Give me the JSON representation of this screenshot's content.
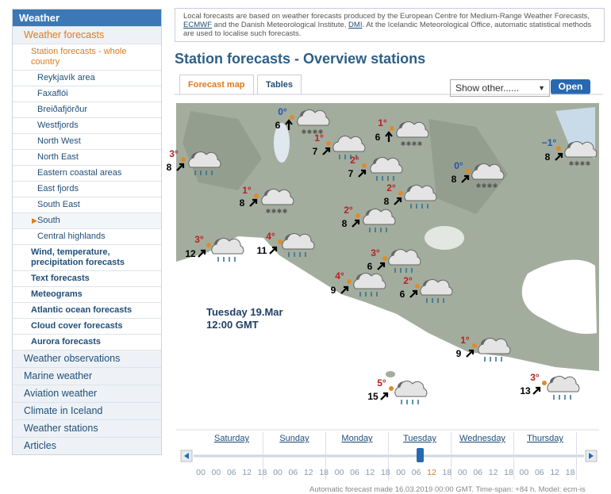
{
  "sidebar": {
    "title": "Weather",
    "section": "Weather forecasts",
    "subsection": "Station forecasts - whole country",
    "regions": [
      "Reykjavík area",
      "Faxaflói",
      "Breiðafjörður",
      "Westfjords",
      "North West",
      "North East",
      "Eastern coastal areas",
      "East fjords",
      "South East",
      "South",
      "Central highlands"
    ],
    "forecast_links": [
      "Wind, temperature, precipitation forecasts",
      "Text forecasts",
      "Meteograms",
      "Atlantic ocean forecasts",
      "Cloud cover forecasts",
      "Aurora forecasts"
    ],
    "menu": [
      "Weather observations",
      "Marine weather",
      "Aviation weather",
      "Climate in Iceland",
      "Weather stations",
      "Articles"
    ]
  },
  "notice": {
    "text1": "Local forecasts are based on weather forecasts produced by the European Centre for Medium-Range Weather Forecasts, ",
    "link1": "ECMWF",
    "text2": " and the Danish Meteorological Institute, ",
    "link2": "DMI",
    "text3": ". At the Icelandic Meteorological Office, automatic statistical methods are used to localise such forecasts."
  },
  "heading": "Station forecasts - Overview stations",
  "tabs": [
    "Forecast map",
    "Tables"
  ],
  "select": "Show other......",
  "button": "Open",
  "map": {
    "date": "Tuesday 19.Mar",
    "time": "12:00 GMT",
    "stations": [
      {
        "temp": "0°",
        "wind": "6"
      },
      {
        "temp": "1°",
        "wind": "7"
      },
      {
        "temp": "1°",
        "wind": "6"
      },
      {
        "temp": "3°",
        "wind": "8"
      },
      {
        "temp": "2°",
        "wind": "7"
      },
      {
        "temp": "−1°",
        "wind": "8"
      },
      {
        "temp": "0°",
        "wind": "8"
      },
      {
        "temp": "1°",
        "wind": "8"
      },
      {
        "temp": "2°",
        "wind": "8"
      },
      {
        "temp": "2°",
        "wind": "8"
      },
      {
        "temp": "3°",
        "wind": "12"
      },
      {
        "temp": "4°",
        "wind": "11"
      },
      {
        "temp": "3°",
        "wind": "6"
      },
      {
        "temp": "4°",
        "wind": "9"
      },
      {
        "temp": "2°",
        "wind": "6"
      },
      {
        "temp": "1°",
        "wind": "9"
      },
      {
        "temp": "3°",
        "wind": "13"
      },
      {
        "temp": "5°",
        "wind": "15"
      }
    ]
  },
  "timeline": {
    "days": [
      "Saturday",
      "Sunday",
      "Monday",
      "Tuesday",
      "Wednesday",
      "Thursday"
    ],
    "hours": [
      "00",
      "00",
      "06",
      "12",
      "18",
      "00",
      "06",
      "12",
      "18",
      "00",
      "06",
      "12",
      "18",
      "00",
      "06",
      "12",
      "18",
      "00",
      "06",
      "12",
      "18",
      "00",
      "06",
      "12",
      "18"
    ]
  },
  "footer": "Automatic forecast made 16.03.2019 00:00 GMT. Time-span: +84 h. Model: ecm-is"
}
